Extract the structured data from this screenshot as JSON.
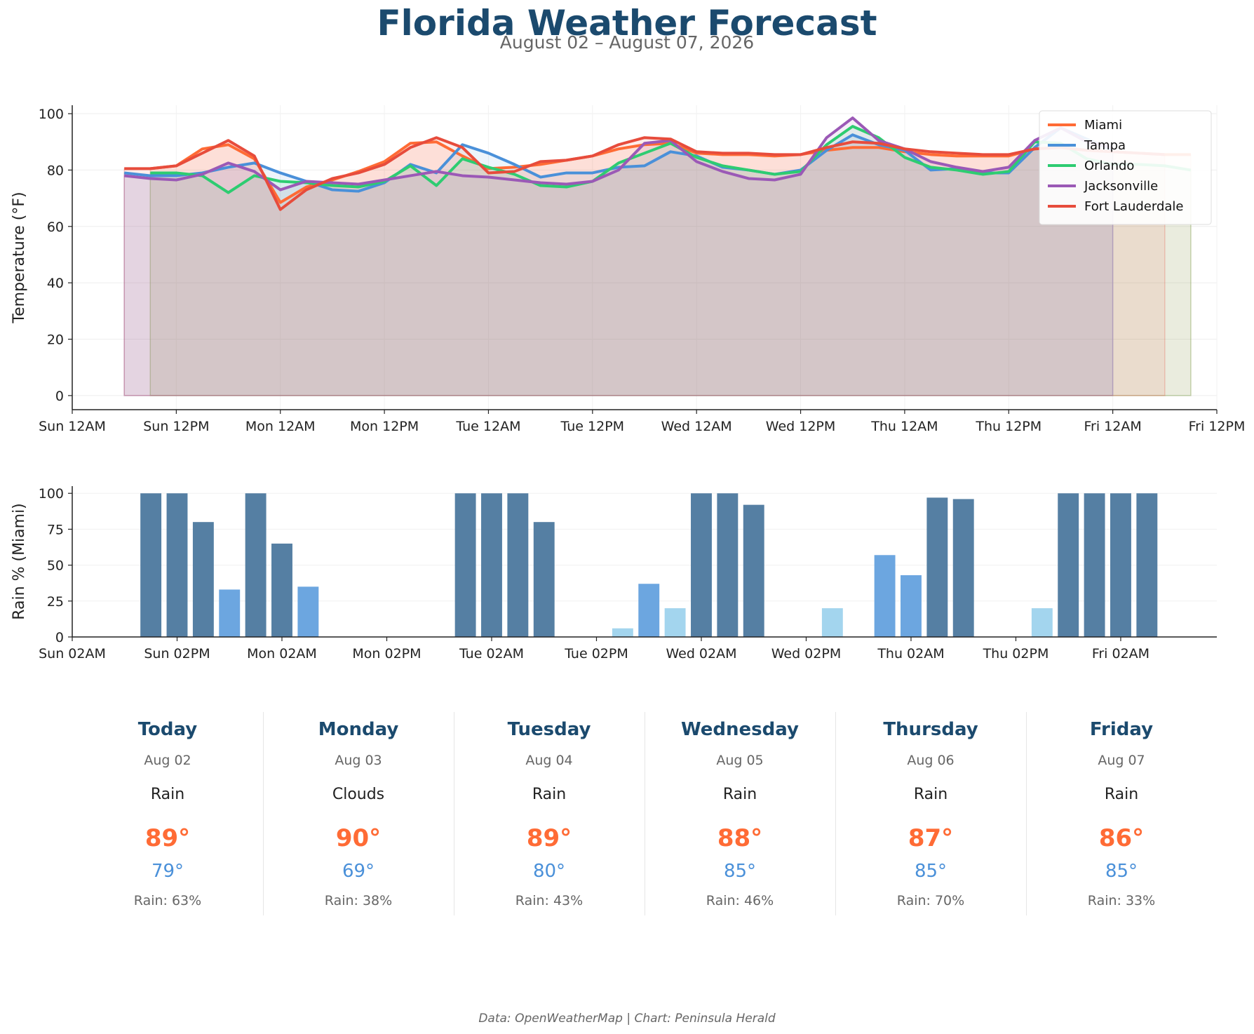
{
  "header": {
    "title": "Florida Weather Forecast",
    "subtitle": "August 02 – August 07, 2026"
  },
  "colors": {
    "Miami": "#ff6b35",
    "Tampa": "#4a90d9",
    "Orlando": "#2ecc71",
    "Jacksonville": "#9b59b6",
    "Fort Lauderdale": "#e74c3c",
    "rain_high": "#557fa3",
    "rain_mid": "#6ca6e0",
    "rain_low": "#a3d5ee",
    "title": "#1b4a6e",
    "high_temp": "#ff6b35",
    "low_temp": "#4a90d9"
  },
  "chart_data": [
    {
      "type": "line",
      "xlabel": "",
      "ylabel": "Temperature (°F)",
      "ylim": [
        -5,
        103
      ],
      "x_ticks": [
        "Sun 12AM",
        "Sun 12PM",
        "Mon 12AM",
        "Mon 12PM",
        "Tue 12AM",
        "Tue 12PM",
        "Wed 12AM",
        "Wed 12PM",
        "Thu 12AM",
        "Thu 12PM",
        "Fri 12AM",
        "Fri 12PM"
      ],
      "x_tick_hours": [
        0,
        12,
        24,
        36,
        48,
        60,
        72,
        84,
        96,
        108,
        120,
        132
      ],
      "y_ticks": [
        0,
        20,
        40,
        60,
        80,
        100
      ],
      "x_range_hours": [
        0,
        132
      ],
      "legend": "top-right",
      "grid": true,
      "x_hours": [
        6,
        9,
        12,
        15,
        18,
        21,
        24,
        27,
        30,
        33,
        36,
        39,
        42,
        45,
        48,
        51,
        54,
        57,
        60,
        63,
        66,
        69,
        72,
        75,
        78,
        81,
        84,
        87,
        90,
        93,
        96,
        99,
        102,
        105,
        108,
        111,
        114,
        117,
        120,
        123,
        126
      ],
      "series": [
        {
          "name": "Miami",
          "start_hour": 9,
          "values": [
            80.5,
            81.5,
            87.5,
            89,
            84,
            68.5,
            74,
            76.5,
            79.5,
            83,
            89.5,
            90,
            85,
            80.5,
            81,
            82,
            83.5,
            85,
            87.5,
            89,
            89.5,
            86,
            85.5,
            85.5,
            85,
            85.5,
            87,
            88,
            88,
            86.5,
            85.5,
            85,
            85,
            85,
            87.5,
            88,
            87,
            86.5,
            86,
            85.5,
            85.5
          ]
        },
        {
          "name": "Tampa",
          "start_hour": 6,
          "values": [
            79,
            78,
            78,
            79,
            81,
            82.5,
            79,
            76,
            73,
            72.5,
            75.5,
            82,
            79,
            89,
            86,
            82,
            77.5,
            79,
            79,
            81,
            81.5,
            86.5,
            85,
            81,
            80,
            78.5,
            80,
            87,
            92.5,
            89,
            87,
            80,
            80.5,
            79,
            79,
            88,
            95,
            91,
            87
          ]
        },
        {
          "name": "Orlando",
          "start_hour": 9,
          "values": [
            79,
            79,
            78,
            72,
            78,
            76,
            75.5,
            74.5,
            74,
            76,
            81.5,
            74.5,
            84,
            81,
            78.5,
            74.5,
            74,
            76,
            82.5,
            86,
            89.5,
            84.5,
            81.5,
            80,
            78.5,
            79.5,
            89,
            95.5,
            91.5,
            84.5,
            81,
            80,
            78.5,
            79.5,
            90,
            89.5,
            84,
            82,
            82,
            81.5,
            80
          ]
        },
        {
          "name": "Jacksonville",
          "start_hour": 6,
          "values": [
            78,
            77,
            76.5,
            78.5,
            82.5,
            79.5,
            73,
            76,
            75.5,
            75,
            76.5,
            78,
            79.5,
            78,
            77.5,
            76.5,
            75.5,
            75,
            76,
            80,
            89.5,
            90.5,
            83,
            79.5,
            77,
            76.5,
            78.5,
            91.5,
            98.5,
            90.5,
            87.5,
            83,
            81,
            79.5,
            81,
            90.5,
            95,
            90,
            88
          ]
        },
        {
          "name": "Fort Lauderdale",
          "start_hour": 6,
          "values": [
            80.5,
            80.5,
            81.5,
            86,
            90.5,
            85,
            66,
            73,
            77,
            79,
            82,
            88,
            91.5,
            88,
            79,
            79.5,
            83,
            83.5,
            85,
            89,
            91.5,
            91,
            86.5,
            86,
            86,
            85.5,
            85.5,
            88,
            90,
            89.5,
            87.5,
            86.5,
            86,
            85.5,
            85.5,
            87.5,
            88,
            87,
            86.5,
            86,
            85.5
          ]
        }
      ]
    },
    {
      "type": "bar",
      "xlabel": "",
      "ylabel": "Rain % (Miami)",
      "ylim": [
        0,
        105
      ],
      "x_ticks": [
        "Sun 02AM",
        "Sun 02PM",
        "Mon 02AM",
        "Mon 02PM",
        "Tue 02AM",
        "Tue 02PM",
        "Wed 02AM",
        "Wed 02PM",
        "Thu 02AM",
        "Thu 02PM",
        "Fri 02AM"
      ],
      "x_tick_hours": [
        2,
        14,
        26,
        38,
        50,
        62,
        74,
        86,
        98,
        110,
        122
      ],
      "y_ticks": [
        0,
        25,
        50,
        75,
        100
      ],
      "x_range_hours": [
        2,
        133
      ],
      "grid": true,
      "bar_hours": [
        11,
        14,
        17,
        20,
        23,
        26,
        29,
        32,
        35,
        38,
        41,
        44,
        47,
        50,
        53,
        56,
        59,
        62,
        65,
        68,
        71,
        74,
        77,
        80,
        83,
        86,
        89,
        92,
        95,
        98,
        101,
        104,
        107,
        110,
        113,
        116,
        119,
        122,
        125,
        128
      ],
      "values": [
        100,
        100,
        80,
        33,
        100,
        65,
        35,
        0,
        0,
        0,
        0,
        0,
        100,
        100,
        100,
        80,
        0,
        0,
        6,
        37,
        20,
        100,
        100,
        92,
        0,
        0,
        20,
        0,
        57,
        43,
        97,
        96,
        0,
        0,
        20,
        100,
        100,
        100,
        100,
        0
      ]
    }
  ],
  "forecast": [
    {
      "day": "Today",
      "date": "Aug 02",
      "condition": "Rain",
      "high": "89°",
      "low": "79°",
      "rain": "Rain: 63%"
    },
    {
      "day": "Monday",
      "date": "Aug 03",
      "condition": "Clouds",
      "high": "90°",
      "low": "69°",
      "rain": "Rain: 38%"
    },
    {
      "day": "Tuesday",
      "date": "Aug 04",
      "condition": "Rain",
      "high": "89°",
      "low": "80°",
      "rain": "Rain: 43%"
    },
    {
      "day": "Wednesday",
      "date": "Aug 05",
      "condition": "Rain",
      "high": "88°",
      "low": "85°",
      "rain": "Rain: 46%"
    },
    {
      "day": "Thursday",
      "date": "Aug 06",
      "condition": "Rain",
      "high": "87°",
      "low": "85°",
      "rain": "Rain: 70%"
    },
    {
      "day": "Friday",
      "date": "Aug 07",
      "condition": "Rain",
      "high": "86°",
      "low": "85°",
      "rain": "Rain: 33%"
    }
  ],
  "footer": {
    "credit": "Data: OpenWeatherMap | Chart: Peninsula Herald"
  }
}
